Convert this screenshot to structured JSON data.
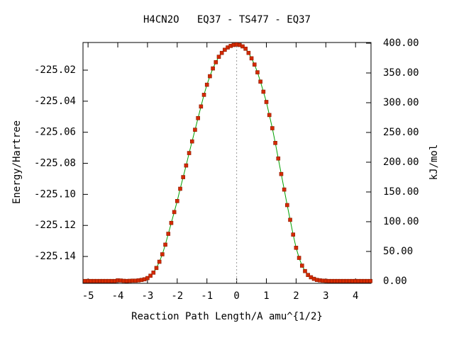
{
  "chart_data": {
    "type": "line",
    "title": "H4CN2O   EQ37 - TS477 - EQ37",
    "x_label": "Reaction Path Length/A amu^{1/2}",
    "y_label": "Energy/Hartree",
    "y2_label": "kJ/mol",
    "x": [
      -5.1,
      -5.0,
      -4.9,
      -4.8,
      -4.7,
      -4.6,
      -4.5,
      -4.4,
      -4.3,
      -4.2,
      -4.1,
      -4.0,
      -3.9,
      -3.8,
      -3.7,
      -3.6,
      -3.5,
      -3.4,
      -3.3,
      -3.2,
      -3.1,
      -3.0,
      -2.9,
      -2.8,
      -2.7,
      -2.6,
      -2.5,
      -2.4,
      -2.3,
      -2.2,
      -2.1,
      -2.0,
      -1.9,
      -1.8,
      -1.7,
      -1.6,
      -1.5,
      -1.4,
      -1.3,
      -1.2,
      -1.1,
      -1.0,
      -0.9,
      -0.8,
      -0.7,
      -0.6,
      -0.5,
      -0.4,
      -0.3,
      -0.2,
      -0.1,
      0.0,
      0.1,
      0.2,
      0.3,
      0.4,
      0.5,
      0.6,
      0.7,
      0.8,
      0.9,
      1.0,
      1.1,
      1.2,
      1.3,
      1.4,
      1.5,
      1.6,
      1.7,
      1.8,
      1.9,
      2.0,
      2.1,
      2.2,
      2.3,
      2.4,
      2.5,
      2.6,
      2.7,
      2.8,
      2.9,
      3.0,
      3.1,
      3.2,
      3.3,
      3.4,
      3.5,
      3.6,
      3.7,
      3.8,
      3.9,
      4.0,
      4.1,
      4.2,
      4.3,
      4.4,
      4.5
    ],
    "series": [
      {
        "name": "Energy",
        "line_color": "#00a000",
        "marker_color": "#d42a00",
        "values": [
          -225.1558,
          -225.1558,
          -225.1558,
          -225.1558,
          -225.1558,
          -225.1558,
          -225.1558,
          -225.1558,
          -225.1558,
          -225.1558,
          -225.1558,
          -225.1554,
          -225.1555,
          -225.1557,
          -225.1558,
          -225.1557,
          -225.1556,
          -225.1556,
          -225.1554,
          -225.1551,
          -225.1547,
          -225.1539,
          -225.1524,
          -225.1504,
          -225.1474,
          -225.1434,
          -225.1386,
          -225.1324,
          -225.1254,
          -225.1184,
          -225.1114,
          -225.1043,
          -225.0964,
          -225.0889,
          -225.0814,
          -225.0734,
          -225.0659,
          -225.0584,
          -225.0509,
          -225.0434,
          -225.0359,
          -225.0294,
          -225.0239,
          -225.0189,
          -225.0149,
          -225.0114,
          -225.0089,
          -225.0069,
          -225.0054,
          -225.0044,
          -225.0038,
          -225.0035,
          -225.0038,
          -225.0047,
          -225.0062,
          -225.0089,
          -225.0124,
          -225.0164,
          -225.0214,
          -225.0274,
          -225.0339,
          -225.0405,
          -225.0489,
          -225.0574,
          -225.0669,
          -225.0769,
          -225.0869,
          -225.0969,
          -225.1069,
          -225.1164,
          -225.1259,
          -225.1344,
          -225.1409,
          -225.1459,
          -225.1494,
          -225.1519,
          -225.1534,
          -225.1544,
          -225.1551,
          -225.1554,
          -225.1556,
          -225.1557,
          -225.1558,
          -225.1558,
          -225.1558,
          -225.1558,
          -225.1558,
          -225.1558,
          -225.1558,
          -225.1558,
          -225.1558,
          -225.1558,
          -225.1558,
          -225.1558,
          -225.1558,
          -225.1558,
          -225.1558
        ]
      }
    ],
    "xlim": [
      -5.17,
      4.52
    ],
    "xticks": [
      -5,
      -4,
      -3,
      -2,
      -1,
      0,
      1,
      2,
      3,
      4
    ],
    "ylim": [
      -225.1573,
      -225.0022
    ],
    "yticks": [
      -225.02,
      -225.04,
      -225.06,
      -225.08,
      {
        "value": -225.1,
        "label": "-225.10"
      },
      -225.12,
      -225.14
    ],
    "y2lim": [
      -3.6,
      401.2
    ],
    "y2ticks": [
      {
        "value": 0,
        "label": "0.00"
      },
      {
        "value": 50,
        "label": "50.00"
      },
      {
        "value": 100,
        "label": "100.00"
      },
      {
        "value": 150,
        "label": "150.00"
      },
      {
        "value": 200,
        "label": "200.00"
      },
      {
        "value": 250,
        "label": "250.00"
      },
      {
        "value": 300,
        "label": "300.00"
      },
      {
        "value": 350,
        "label": "350.00"
      },
      {
        "value": 400,
        "label": "400.00"
      }
    ]
  }
}
